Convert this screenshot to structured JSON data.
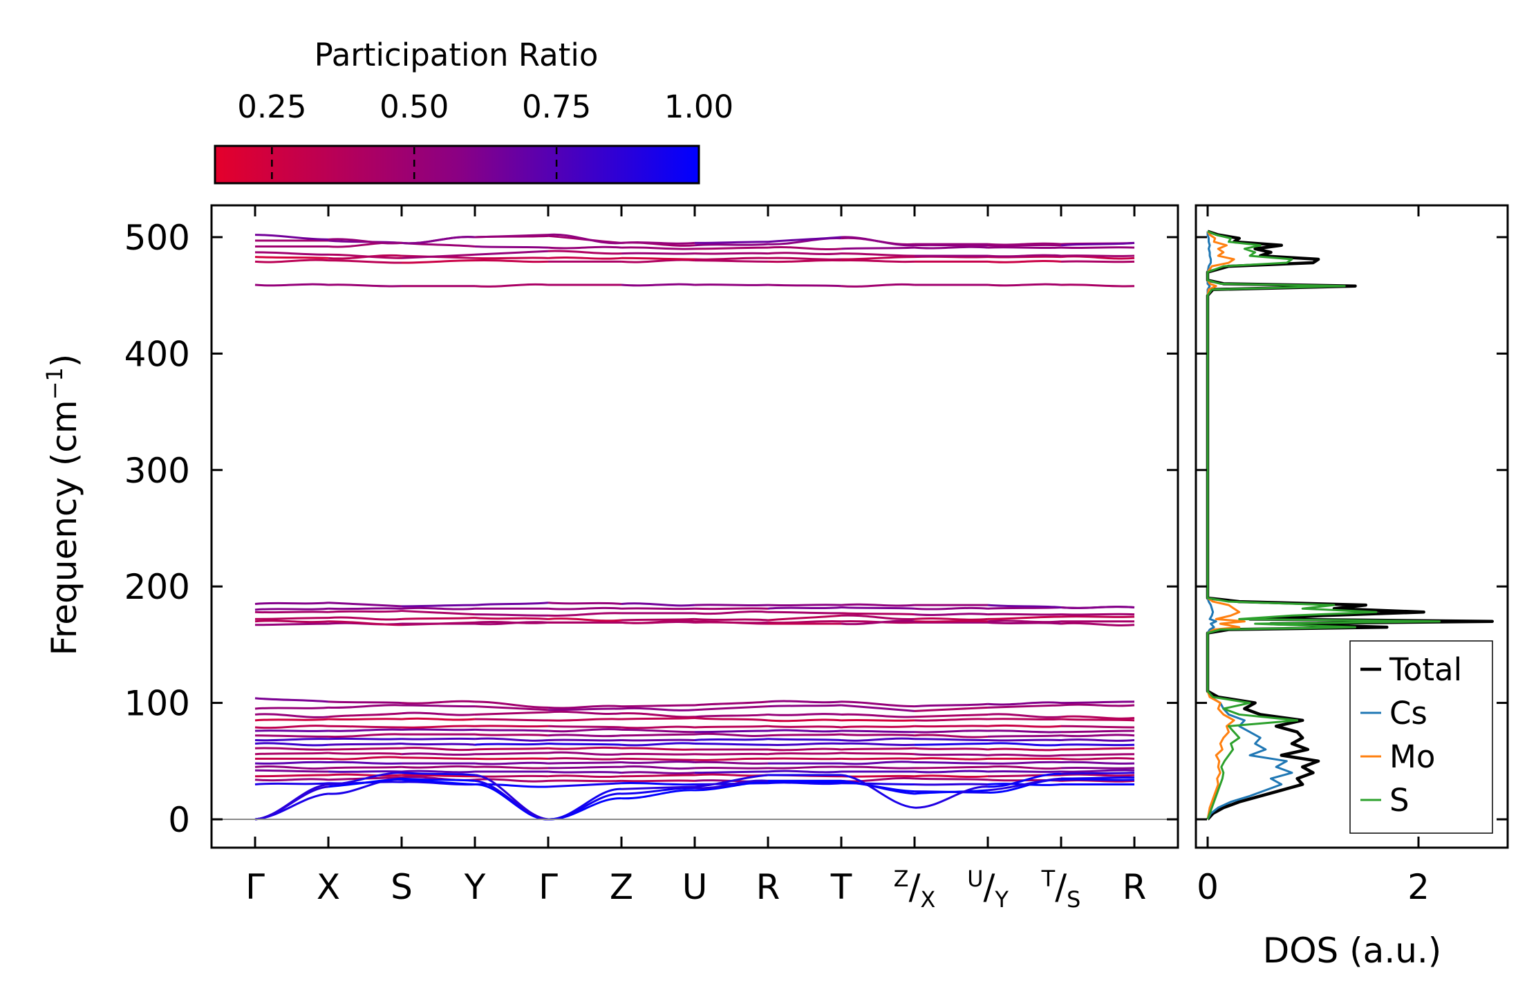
{
  "chart_data": [
    {
      "type": "line",
      "subtype": "phonon-band-structure",
      "ylabel": "Frequency (cm$^{-1}$)",
      "ylabel_text": "Frequency (cm",
      "ylabel_sup": "−1",
      "ylabel_close": ")",
      "ylim": [
        -25,
        528
      ],
      "yticks": [
        0,
        100,
        200,
        300,
        400,
        500
      ],
      "ytick_labels": [
        "0",
        "100",
        "200",
        "300",
        "400",
        "500"
      ],
      "high_symmetry_labels": [
        "Γ",
        "X",
        "S",
        "Y",
        "Γ",
        "Z",
        "U",
        "R",
        "T",
        "Z|X",
        "U|Y",
        "T|S",
        "R"
      ],
      "segments": [
        {
          "from": "Γ",
          "to": "X"
        },
        {
          "from": "X",
          "to": "S"
        },
        {
          "from": "S",
          "to": "Y"
        },
        {
          "from": "Y",
          "to": "Γ"
        },
        {
          "from": "Γ",
          "to": "Z"
        },
        {
          "from": "Z",
          "to": "U"
        },
        {
          "from": "U",
          "to": "R"
        },
        {
          "from": "R",
          "to": "T"
        },
        {
          "from": "T",
          "to": "Z"
        },
        {
          "from": "X",
          "to": "U"
        },
        {
          "from": "Y",
          "to": "T"
        },
        {
          "from": "S",
          "to": "R"
        }
      ],
      "color_by": "participation_ratio",
      "bands_participation_ratio": [
        {
          "name": "optic-high-1",
          "values": [
            479,
            480,
            478,
            480,
            479,
            479,
            480,
            479,
            480,
            479,
            479,
            479,
            479
          ],
          "pr": 0.35
        },
        {
          "name": "optic-high-2",
          "values": [
            483,
            482,
            484,
            482,
            482,
            482,
            481,
            482,
            481,
            483,
            483,
            483,
            482
          ],
          "pr": 0.3
        },
        {
          "name": "optic-high-3",
          "values": [
            487,
            485,
            482,
            485,
            488,
            486,
            486,
            486,
            486,
            484,
            484,
            484,
            484
          ],
          "pr": 0.45
        },
        {
          "name": "optic-high-4",
          "values": [
            492,
            492,
            495,
            492,
            491,
            491,
            490,
            491,
            490,
            491,
            491,
            491,
            491
          ],
          "pr": 0.5
        },
        {
          "name": "optic-high-5",
          "values": [
            497,
            497,
            495,
            500,
            501,
            495,
            493,
            494,
            499,
            494,
            494,
            494,
            495
          ],
          "pr": 0.55
        },
        {
          "name": "optic-high-6",
          "values": [
            502,
            498,
            495,
            500,
            502,
            495,
            495,
            496,
            500,
            493,
            493,
            493,
            495
          ],
          "pr": 0.6
        },
        {
          "name": "a1-459",
          "values": [
            459,
            459,
            458,
            458,
            459,
            459,
            459,
            459,
            458,
            459,
            459,
            459,
            458
          ],
          "pr": 0.5
        },
        {
          "name": "mid-1",
          "values": [
            167,
            168,
            168,
            168,
            169,
            169,
            169,
            169,
            170,
            169,
            169,
            168,
            167
          ],
          "pr": 0.45
        },
        {
          "name": "mid-2",
          "values": [
            170,
            170,
            167,
            169,
            169,
            169,
            170,
            168,
            168,
            170,
            170,
            170,
            170
          ],
          "pr": 0.4
        },
        {
          "name": "mid-3",
          "values": [
            172,
            173,
            172,
            173,
            172,
            171,
            172,
            171,
            175,
            172,
            172,
            174,
            174
          ],
          "pr": 0.35
        },
        {
          "name": "mid-4",
          "values": [
            178,
            178,
            179,
            176,
            175,
            177,
            177,
            178,
            177,
            176,
            176,
            176,
            176
          ],
          "pr": 0.45
        },
        {
          "name": "mid-5",
          "values": [
            180,
            181,
            181,
            181,
            181,
            181,
            181,
            181,
            182,
            181,
            181,
            182,
            182
          ],
          "pr": 0.55
        },
        {
          "name": "mid-6",
          "values": [
            185,
            186,
            183,
            184,
            186,
            185,
            184,
            184,
            184,
            184,
            184,
            182,
            182
          ],
          "pr": 0.6
        },
        {
          "name": "low-101",
          "values": [
            104,
            101,
            100,
            101,
            96,
            97,
            98,
            101,
            101,
            97,
            99,
            100,
            101
          ],
          "pr": 0.55
        },
        {
          "name": "low-95",
          "values": [
            95,
            96,
            98,
            97,
            94,
            95,
            94,
            97,
            98,
            93,
            96,
            98,
            98
          ],
          "pr": 0.5
        },
        {
          "name": "low-90",
          "values": [
            90,
            88,
            91,
            90,
            92,
            91,
            88,
            90,
            90,
            88,
            90,
            88,
            87
          ],
          "pr": 0.45
        },
        {
          "name": "low-85",
          "values": [
            85,
            86,
            86,
            86,
            85,
            86,
            87,
            85,
            85,
            85,
            86,
            86,
            85
          ],
          "pr": 0.3
        },
        {
          "name": "low-80",
          "values": [
            79,
            80,
            79,
            80,
            80,
            79,
            79,
            80,
            79,
            80,
            80,
            80,
            79
          ],
          "pr": 0.35
        },
        {
          "name": "low-76",
          "values": [
            76,
            76,
            77,
            77,
            76,
            77,
            75,
            76,
            76,
            75,
            76,
            75,
            76
          ],
          "pr": 0.6
        },
        {
          "name": "low-72",
          "values": [
            72,
            71,
            73,
            73,
            72,
            72,
            73,
            72,
            73,
            72,
            71,
            72,
            72
          ],
          "pr": 0.5
        },
        {
          "name": "low-68",
          "values": [
            68,
            69,
            69,
            69,
            68,
            68,
            68,
            69,
            68,
            69,
            68,
            68,
            68
          ],
          "pr": 0.75
        },
        {
          "name": "low-64",
          "values": [
            65,
            64,
            65,
            64,
            65,
            64,
            65,
            64,
            65,
            64,
            65,
            64,
            64
          ],
          "pr": 0.85
        },
        {
          "name": "low-60",
          "values": [
            61,
            60,
            61,
            60,
            61,
            61,
            60,
            60,
            60,
            61,
            60,
            60,
            61
          ],
          "pr": 0.4
        },
        {
          "name": "low-56",
          "values": [
            56,
            57,
            56,
            56,
            57,
            56,
            56,
            56,
            57,
            56,
            55,
            55,
            56
          ],
          "pr": 0.5
        },
        {
          "name": "low-52",
          "values": [
            52,
            52,
            53,
            52,
            52,
            52,
            51,
            52,
            52,
            52,
            52,
            52,
            52
          ],
          "pr": 0.3
        },
        {
          "name": "low-49",
          "values": [
            48,
            49,
            48,
            48,
            48,
            49,
            49,
            48,
            48,
            49,
            48,
            49,
            48
          ],
          "pr": 0.65
        },
        {
          "name": "low-45",
          "values": [
            45,
            44,
            45,
            45,
            44,
            45,
            44,
            44,
            45,
            44,
            45,
            44,
            44
          ],
          "pr": 0.55
        },
        {
          "name": "low-41",
          "values": [
            42,
            41,
            41,
            41,
            41,
            40,
            40,
            41,
            41,
            41,
            41,
            41,
            42
          ],
          "pr": 0.7
        },
        {
          "name": "low-38",
          "values": [
            37,
            38,
            38,
            37,
            37,
            37,
            38,
            38,
            37,
            37,
            37,
            38,
            38
          ],
          "pr": 0.3
        },
        {
          "name": "low-33",
          "values": [
            34,
            34,
            36,
            34,
            33,
            33,
            33,
            33,
            33,
            35,
            34,
            33,
            33
          ],
          "pr": 0.45
        },
        {
          "name": "low-30",
          "values": [
            30,
            31,
            32,
            30,
            28,
            31,
            30,
            31,
            31,
            30,
            30,
            30,
            30
          ],
          "pr": 0.95
        },
        {
          "name": "acoustic-1",
          "values": [
            0,
            22,
            34,
            30,
            0,
            18,
            25,
            32,
            32,
            24,
            23,
            34,
            34
          ],
          "pr": 1.0
        },
        {
          "name": "acoustic-2",
          "values": [
            0,
            28,
            35,
            33,
            0,
            22,
            27,
            33,
            33,
            22,
            25,
            35,
            36
          ],
          "pr": 0.95
        },
        {
          "name": "acoustic-3",
          "values": [
            0,
            30,
            40,
            38,
            0,
            26,
            28,
            38,
            38,
            10,
            28,
            39,
            40
          ],
          "pr": 0.95
        }
      ],
      "colorbar": {
        "title": "Participation Ratio",
        "range": [
          0.15,
          1.0
        ],
        "ticks": [
          0.25,
          0.5,
          0.75,
          1.0
        ],
        "tick_labels": [
          "0.25",
          "0.50",
          "0.75",
          "1.00"
        ],
        "color_low": "#e4002b",
        "color_mid": "#8b0083",
        "color_high": "#0000ff"
      }
    },
    {
      "type": "line",
      "subtype": "density-of-states",
      "xlabel": "DOS (a.u.)",
      "xlim": [
        -0.15,
        2.85
      ],
      "xticks": [
        0,
        2
      ],
      "xtick_labels": [
        "0",
        "2"
      ],
      "ylim": [
        -25,
        528
      ],
      "y": [
        0,
        5,
        10,
        15,
        20,
        25,
        30,
        35,
        40,
        45,
        50,
        55,
        60,
        65,
        70,
        75,
        80,
        85,
        90,
        95,
        100,
        105,
        110,
        160,
        163,
        165,
        168,
        170,
        172,
        175,
        178,
        181,
        184,
        187,
        190,
        200,
        450,
        455,
        458,
        460,
        463,
        470,
        475,
        478,
        481,
        484,
        487,
        490,
        493,
        496,
        499,
        502,
        505
      ],
      "series": [
        {
          "name": "Total",
          "color": "#000000",
          "values": [
            0.0,
            0.05,
            0.15,
            0.3,
            0.5,
            0.7,
            0.9,
            0.85,
            1.0,
            0.9,
            1.05,
            0.7,
            0.95,
            0.8,
            0.9,
            0.85,
            0.65,
            0.9,
            0.5,
            0.35,
            0.45,
            0.1,
            0.0,
            0.0,
            0.2,
            1.7,
            0.6,
            2.7,
            0.4,
            1.1,
            2.05,
            1.2,
            1.5,
            0.3,
            0.0,
            0.0,
            0.0,
            0.05,
            1.4,
            0.15,
            0.0,
            0.0,
            0.2,
            1.0,
            1.05,
            0.5,
            0.6,
            0.45,
            0.7,
            0.25,
            0.3,
            0.1,
            0.0
          ]
        },
        {
          "name": "Cs",
          "color": "#1f77b4",
          "values": [
            0.0,
            0.03,
            0.1,
            0.22,
            0.4,
            0.55,
            0.7,
            0.6,
            0.8,
            0.65,
            0.75,
            0.4,
            0.55,
            0.45,
            0.5,
            0.4,
            0.3,
            0.35,
            0.2,
            0.15,
            0.12,
            0.03,
            0.0,
            0.0,
            0.02,
            0.06,
            0.03,
            0.08,
            0.02,
            0.04,
            0.05,
            0.04,
            0.03,
            0.01,
            0.0,
            0.0,
            0.0,
            0.0,
            0.02,
            0.0,
            0.0,
            0.0,
            0.01,
            0.03,
            0.03,
            0.02,
            0.02,
            0.01,
            0.02,
            0.01,
            0.01,
            0.0,
            0.0
          ]
        },
        {
          "name": "Mo",
          "color": "#ff7f0e",
          "values": [
            0.0,
            0.01,
            0.02,
            0.04,
            0.06,
            0.08,
            0.1,
            0.09,
            0.12,
            0.1,
            0.11,
            0.08,
            0.14,
            0.12,
            0.15,
            0.2,
            0.18,
            0.25,
            0.15,
            0.1,
            0.12,
            0.02,
            0.0,
            0.0,
            0.06,
            0.3,
            0.12,
            0.35,
            0.08,
            0.22,
            0.3,
            0.25,
            0.2,
            0.05,
            0.0,
            0.0,
            0.0,
            0.01,
            0.08,
            0.02,
            0.0,
            0.0,
            0.04,
            0.2,
            0.25,
            0.1,
            0.15,
            0.1,
            0.18,
            0.06,
            0.07,
            0.02,
            0.0
          ]
        },
        {
          "name": "S",
          "color": "#2ca02c",
          "values": [
            0.0,
            0.02,
            0.04,
            0.06,
            0.08,
            0.1,
            0.12,
            0.14,
            0.15,
            0.13,
            0.16,
            0.2,
            0.24,
            0.22,
            0.3,
            0.25,
            0.2,
            0.85,
            0.3,
            0.15,
            0.4,
            0.05,
            0.0,
            0.0,
            0.12,
            1.4,
            0.45,
            2.2,
            0.3,
            0.8,
            1.6,
            0.9,
            1.2,
            0.2,
            0.0,
            0.0,
            0.0,
            0.04,
            1.3,
            0.12,
            0.0,
            0.0,
            0.15,
            0.75,
            0.8,
            0.4,
            0.45,
            0.35,
            0.5,
            0.2,
            0.22,
            0.08,
            0.0
          ]
        }
      ],
      "legend": {
        "position": "lower-right",
        "entries": [
          "Total",
          "Cs",
          "Mo",
          "S"
        ]
      }
    }
  ]
}
